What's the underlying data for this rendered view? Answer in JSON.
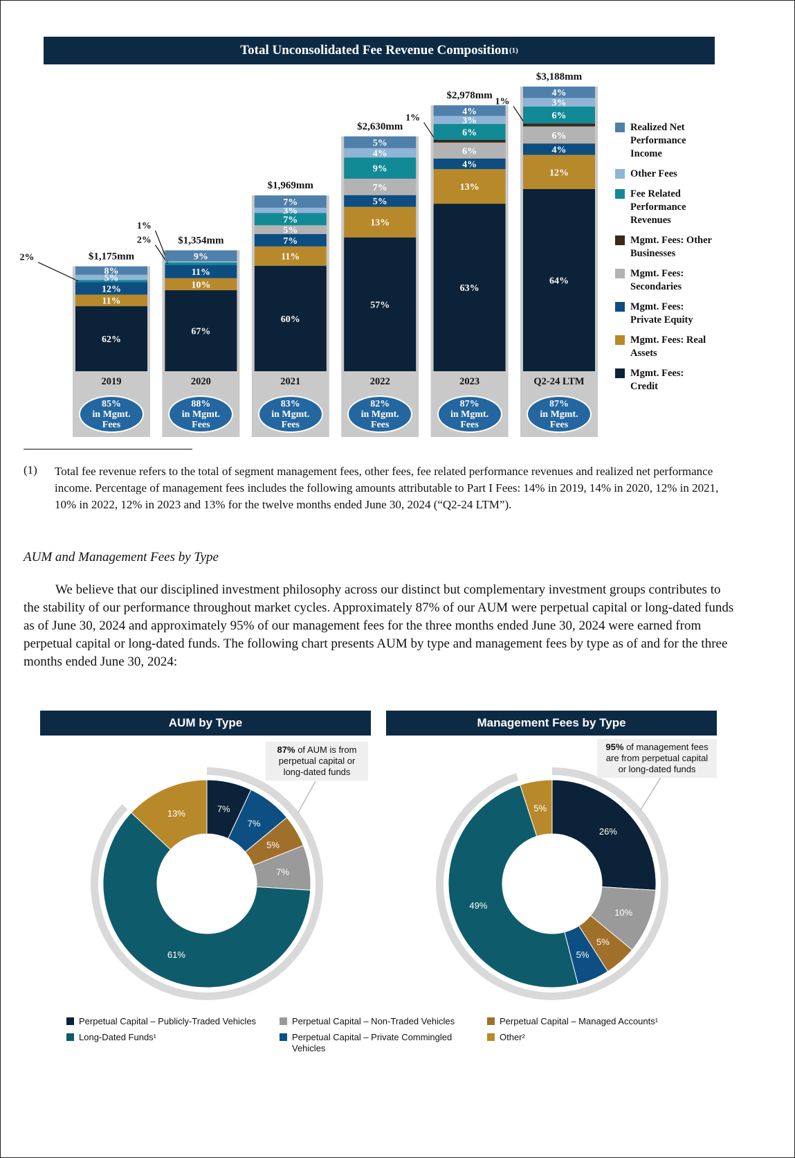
{
  "chart_data": [
    {
      "type": "bar",
      "stacked": true,
      "title": "Total Unconsolidated Fee Revenue Composition",
      "title_note": "(1)",
      "categories": [
        "2019",
        "2020",
        "2021",
        "2022",
        "2023",
        "Q2-24 LTM"
      ],
      "totals": {
        "values": [
          1175,
          1354,
          1969,
          2630,
          2978,
          3188
        ],
        "value_labels": [
          "$1,175mm",
          "$1,354mm",
          "$1,969mm",
          "$2,630mm",
          "$2,978mm",
          "$3,188mm"
        ]
      },
      "mgmt_share": {
        "values": [
          85,
          88,
          83,
          82,
          87,
          87
        ],
        "value_labels": [
          "85%",
          "88%",
          "83%",
          "82%",
          "87%",
          "87%"
        ],
        "caption": "in Mgmt. Fees"
      },
      "series": [
        {
          "name": "Mgmt. Fees: Credit",
          "color": "#0b2238",
          "values": [
            62,
            67,
            60,
            57,
            63,
            64
          ],
          "value_labels": [
            "62%",
            "67%",
            "60%",
            "57%",
            "63%",
            "64%"
          ]
        },
        {
          "name": "Mgmt. Fees: Real Assets",
          "color": "#b8892b",
          "values": [
            11,
            10,
            11,
            13,
            13,
            12
          ],
          "value_labels": [
            "11%",
            "10%",
            "11%",
            "13%",
            "13%",
            "12%"
          ]
        },
        {
          "name": "Mgmt. Fees: Private Equity",
          "color": "#0e4d80",
          "values": [
            12,
            11,
            7,
            5,
            4,
            4
          ],
          "value_labels": [
            "12%",
            "11%",
            "7%",
            "5%",
            "4%",
            "4%"
          ]
        },
        {
          "name": "Mgmt. Fees: Secondaries",
          "color": "#b3b3b3",
          "values": [
            null,
            null,
            5,
            7,
            6,
            6
          ],
          "value_labels": [
            null,
            null,
            "5%",
            "7%",
            "6%",
            "6%"
          ]
        },
        {
          "name": "Mgmt. Fees: Other Businesses",
          "color": "#3a2a17",
          "values": [
            null,
            null,
            null,
            null,
            1,
            1
          ],
          "value_labels": [
            null,
            null,
            null,
            null,
            "1%",
            "1%"
          ]
        },
        {
          "name": "Fee Related Performance Revenues",
          "color": "#128a96",
          "values": [
            2,
            2,
            7,
            9,
            6,
            6
          ],
          "value_labels": [
            "2%",
            "2%",
            "7%",
            "9%",
            "6%",
            "6%"
          ]
        },
        {
          "name": "Other Fees",
          "color": "#8fb4d6",
          "values": [
            5,
            1,
            3,
            4,
            3,
            3
          ],
          "value_labels": [
            "5%",
            "1%",
            "3%",
            "4%",
            "3%",
            "3%"
          ]
        },
        {
          "name": "Realized Net Performance Income",
          "color": "#4f80ab",
          "values": [
            8,
            9,
            7,
            5,
            4,
            4
          ],
          "value_labels": [
            "8%",
            "9%",
            "7%",
            "5%",
            "4%",
            "4%"
          ]
        }
      ]
    },
    {
      "type": "donut",
      "title": "AUM by Type",
      "values": [
        7,
        7,
        5,
        7,
        61,
        13
      ],
      "value_labels": [
        "7%",
        "7%",
        "5%",
        "7%",
        "61%",
        "13%"
      ],
      "colors": [
        "#0b2238",
        "#0d4f82",
        "#a0702a",
        "#9a9a9a",
        "#0e5c6b",
        "#b8892b"
      ],
      "callout": {
        "value": 87,
        "value_label": "87%",
        "text": "of AUM is from perpetual capital or long-dated funds"
      }
    },
    {
      "type": "donut",
      "title": "Management Fees by Type",
      "values": [
        26,
        10,
        5,
        5,
        49,
        5
      ],
      "value_labels": [
        "26%",
        "10%",
        "5%",
        "5%",
        "49%",
        "5%"
      ],
      "colors": [
        "#0b2238",
        "#9a9a9a",
        "#a0702a",
        "#0d4f82",
        "#0e5c6b",
        "#b8892b"
      ],
      "callout": {
        "value": 95,
        "value_label": "95%",
        "text": "of management fees are from perpetual capital or long-dated funds"
      }
    }
  ],
  "donut_legend": [
    {
      "name": "Perpetual Capital – Publicly-Traded Vehicles",
      "color": "#0b2238"
    },
    {
      "name": "Perpetual Capital – Non-Traded Vehicles",
      "color": "#9a9a9a"
    },
    {
      "name": "Perpetual Capital – Managed Accounts¹",
      "color": "#a0702a"
    },
    {
      "name": "Long-Dated Funds¹",
      "color": "#0e5c6b"
    },
    {
      "name": "Perpetual Capital – Private Commingled Vehicles",
      "color": "#0d4f82"
    },
    {
      "name": "Other²",
      "color": "#b8892b"
    }
  ],
  "footnote": {
    "marker": "(1)",
    "text": "Total fee revenue refers to the total of segment management fees, other fees, fee related performance revenues and realized net performance income. Percentage of management fees includes the following amounts attributable to Part I Fees: 14% in 2019, 14% in 2020, 12% in 2021, 10% in 2022, 12% in 2023 and 13% for the twelve months ended June 30, 2024 (“Q2-24 LTM”)."
  },
  "section_heading": "AUM and Management Fees by Type",
  "paragraph": "We believe that our disciplined investment philosophy across our distinct but complementary investment groups contributes to the stability of our performance throughout market cycles. Approximately 87% of our AUM were perpetual capital or long-dated funds as of June 30, 2024 and approximately 95% of our management fees for the three months ended June 30, 2024 were earned from perpetual capital or long-dated funds. The following chart presents AUM by type and management fees by type as of and for the three months ended June 30, 2024:"
}
